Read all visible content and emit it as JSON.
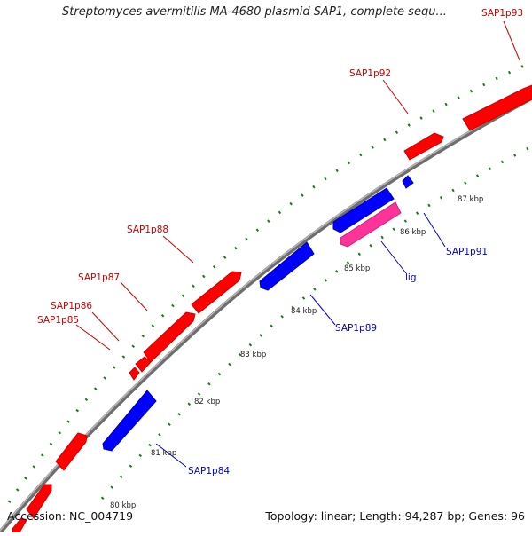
{
  "title": "Streptomyces avermitilis MA-4680 plasmid SAP1, complete sequ...",
  "accession": "Accession: NC_004719",
  "summary": "Topology: linear; Length: 94,287 bp; Genes: 96",
  "colors": {
    "forward_gene": "#ff0000",
    "reverse_gene": "#0000ff",
    "rna_gene": "#ff3399",
    "backbone": "#8c8c8c",
    "tick": "#1a7a1a",
    "forward_label": "#cc0000",
    "reverse_label": "#0000cc"
  },
  "ticks": [
    {
      "label": "80 kbp"
    },
    {
      "label": "81 kbp"
    },
    {
      "label": "82 kbp"
    },
    {
      "label": "83 kbp"
    },
    {
      "label": "84 kbp"
    },
    {
      "label": "85 kbp"
    },
    {
      "label": "86 kbp"
    },
    {
      "label": "87 kbp"
    }
  ],
  "gene_labels": [
    {
      "id": "SAP1p93",
      "text": "SAP1p93",
      "strand": "forward"
    },
    {
      "id": "SAP1p92",
      "text": "SAP1p92",
      "strand": "forward"
    },
    {
      "id": "SAP1p88",
      "text": "SAP1p88",
      "strand": "forward"
    },
    {
      "id": "SAP1p87",
      "text": "SAP1p87",
      "strand": "forward"
    },
    {
      "id": "SAP1p86",
      "text": "SAP1p86",
      "strand": "forward"
    },
    {
      "id": "SAP1p85",
      "text": "SAP1p85",
      "strand": "forward"
    },
    {
      "id": "SAP1p91",
      "text": "SAP1p91",
      "strand": "reverse"
    },
    {
      "id": "lig",
      "text": "lig",
      "strand": "rna"
    },
    {
      "id": "SAP1p89",
      "text": "SAP1p89",
      "strand": "reverse"
    },
    {
      "id": "SAP1p84",
      "text": "SAP1p84",
      "strand": "reverse"
    }
  ]
}
